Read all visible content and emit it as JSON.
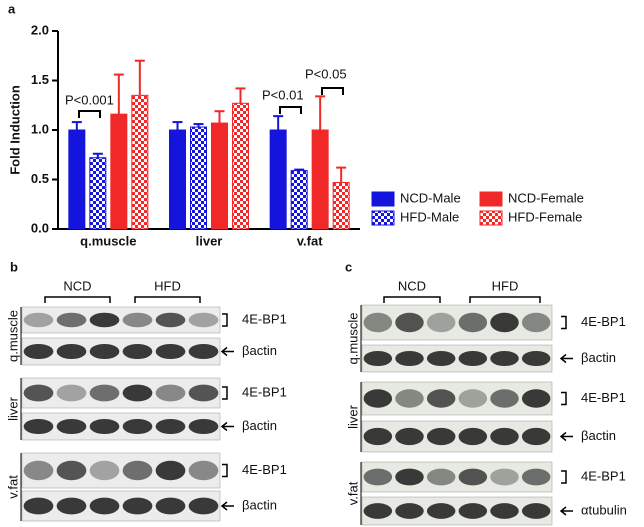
{
  "chart_data": {
    "type": "bar",
    "panel": "a",
    "ylabel": "Fold Induction",
    "categories": [
      "q.muscle",
      "liver",
      "v.fat"
    ],
    "series": [
      {
        "name": "NCD-Male",
        "color": "#1414dc",
        "fill": "solid",
        "values": [
          1.0,
          1.0,
          1.0
        ],
        "errors": [
          0.08,
          0.08,
          0.14
        ]
      },
      {
        "name": "HFD-Male",
        "color": "#1414dc",
        "fill": "checker",
        "values": [
          0.72,
          1.03,
          0.59
        ],
        "errors": [
          0.04,
          0.03,
          0.01
        ]
      },
      {
        "name": "NCD-Female",
        "color": "#f02828",
        "fill": "solid",
        "values": [
          1.16,
          1.07,
          1.0
        ],
        "errors": [
          0.4,
          0.12,
          0.34
        ]
      },
      {
        "name": "HFD-Female",
        "color": "#f02828",
        "fill": "checker",
        "values": [
          1.35,
          1.27,
          0.47
        ],
        "errors": [
          0.35,
          0.15,
          0.15
        ]
      }
    ],
    "ylim": [
      0,
      2.0
    ],
    "yticks": [
      {
        "value": 0,
        "label": "0.0"
      },
      0.5,
      {
        "value": 1.0,
        "label": "1.0"
      },
      1.5,
      {
        "value": 2.0,
        "label": "2.0"
      }
    ],
    "annotations": [
      "P<0.001",
      "P<0.01",
      "P<0.05"
    ],
    "legend": "right"
  },
  "blots": [
    {
      "panel": "b",
      "groups": [
        "NCD",
        "HFD"
      ],
      "rows": [
        {
          "tissue": "q.muscle",
          "bands": [
            "4E-BP1",
            "βactin"
          ]
        },
        {
          "tissue": "liver",
          "bands": [
            "4E-BP1",
            "βactin"
          ]
        },
        {
          "tissue": "v.fat",
          "bands": [
            "4E-BP1",
            "βactin"
          ]
        }
      ]
    },
    {
      "panel": "c",
      "groups": [
        "NCD",
        "HFD"
      ],
      "rows": [
        {
          "tissue": "q.muscle",
          "bands": [
            "4E-BP1",
            "βactin"
          ]
        },
        {
          "tissue": "liver",
          "bands": [
            "4E-BP1",
            "βactin"
          ]
        },
        {
          "tissue": "v.fat",
          "bands": [
            "4E-BP1",
            "αtubulin"
          ]
        }
      ]
    }
  ]
}
